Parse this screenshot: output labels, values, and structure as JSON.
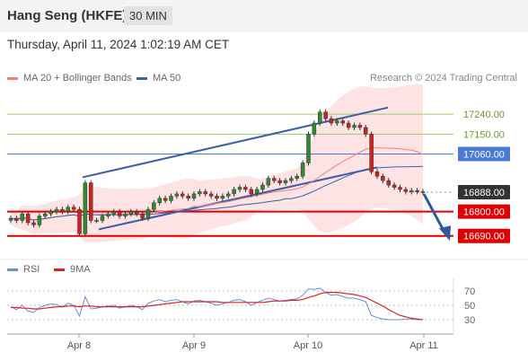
{
  "header": {
    "title": "Hang Seng (HKFE)",
    "timeframe": "30 MIN"
  },
  "datetime": "Thursday, April 11, 2024 1:02:19 AM CET",
  "legend": {
    "ma20": {
      "label": "MA 20 + Bollinger Bands",
      "color": "#f08080"
    },
    "ma50": {
      "label": "MA 50",
      "color": "#3b5fa8"
    },
    "rsi": {
      "label": "RSI",
      "color": "#6b8fd6"
    },
    "ma9": {
      "label": "9MA",
      "color": "#dd2222"
    }
  },
  "copyright": "Research © 2024 Trading Central",
  "chart_data": {
    "type": "candlestick",
    "x_labels": [
      "Apr 8",
      "Apr 9",
      "Apr 10",
      "Apr 11"
    ],
    "ylim": [
      16620,
      17330
    ],
    "levels": [
      {
        "value": 17240,
        "label": "17240.00",
        "kind": "resistance"
      },
      {
        "value": 17150,
        "label": "17150.00",
        "kind": "resistance"
      },
      {
        "value": 17060,
        "label": "17060.00",
        "kind": "pivot"
      },
      {
        "value": 16888,
        "label": "16888.00",
        "kind": "last"
      },
      {
        "value": 16800,
        "label": "16800.00",
        "kind": "support"
      },
      {
        "value": 16690,
        "label": "16690.00",
        "kind": "support"
      }
    ],
    "price": [
      16770,
      16760,
      16790,
      16750,
      16740,
      16780,
      16790,
      16800,
      16810,
      16800,
      16820,
      16810,
      16700,
      16930,
      16760,
      16760,
      16780,
      16790,
      16800,
      16780,
      16790,
      16800,
      16790,
      16770,
      16810,
      16840,
      16860,
      16850,
      16870,
      16880,
      16870,
      16860,
      16880,
      16890,
      16880,
      16870,
      16860,
      16870,
      16880,
      16900,
      16910,
      16900,
      16880,
      16900,
      16920,
      16950,
      16940,
      16930,
      16940,
      16950,
      16960,
      17020,
      17150,
      17200,
      17250,
      17220,
      17200,
      17210,
      17200,
      17180,
      17190,
      17180,
      17150,
      16980,
      16960,
      16940,
      16920,
      16910,
      16900,
      16890,
      16895,
      16890,
      16888
    ],
    "rsi_axis": [
      70,
      50,
      30
    ],
    "rsi_ylim": [
      15,
      85
    ],
    "rsi": [
      48,
      44,
      50,
      42,
      40,
      47,
      50,
      52,
      51,
      48,
      53,
      50,
      35,
      62,
      45,
      46,
      48,
      49,
      50,
      46,
      48,
      50,
      48,
      44,
      53,
      56,
      58,
      55,
      57,
      58,
      55,
      52,
      56,
      57,
      55,
      53,
      50,
      52,
      54,
      57,
      58,
      55,
      50,
      54,
      57,
      60,
      58,
      56,
      57,
      58,
      59,
      64,
      73,
      72,
      74,
      68,
      64,
      65,
      62,
      60,
      60,
      58,
      55,
      36,
      33,
      31,
      30,
      30,
      30,
      31,
      31,
      30,
      30
    ],
    "ma9": [
      47,
      47,
      46,
      46,
      45,
      45,
      46,
      47,
      48,
      48,
      49,
      49,
      48,
      49,
      49,
      48,
      48,
      48,
      48,
      48,
      48,
      48,
      48,
      48,
      49,
      50,
      51,
      52,
      53,
      54,
      55,
      55,
      55,
      55,
      55,
      55,
      55,
      54,
      54,
      54,
      54,
      54,
      54,
      54,
      54,
      55,
      56,
      56,
      56,
      57,
      57,
      58,
      61,
      63,
      66,
      68,
      68,
      68,
      67,
      66,
      65,
      63,
      61,
      57,
      53,
      49,
      44,
      40,
      36,
      34,
      32,
      31,
      30
    ]
  }
}
